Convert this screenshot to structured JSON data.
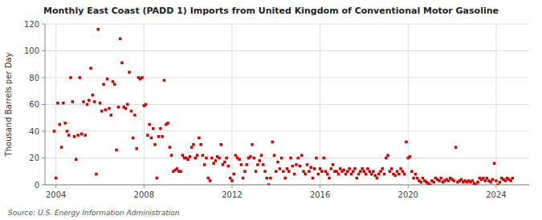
{
  "chart_data": {
    "type": "scatter",
    "title": "Monthly East Coast (PADD 1) Imports from United Kingdom of Conventional Motor Gasoline",
    "ylabel": "Thousand Barrels per Day",
    "source": "Source: U.S. Energy Information Administration",
    "color": "#cc0000",
    "marker": "square",
    "grid": true,
    "xlim": [
      2003.5,
      2025.5
    ],
    "xticks": [
      2004,
      2008,
      2012,
      2016,
      2020,
      2024
    ],
    "ylim": [
      0,
      120
    ],
    "yticks": [
      0,
      20,
      40,
      60,
      80,
      100,
      120
    ],
    "x": [
      2003.917,
      2004.0,
      2004.083,
      2004.167,
      2004.25,
      2004.333,
      2004.417,
      2004.5,
      2004.583,
      2004.667,
      2004.75,
      2004.833,
      2004.917,
      2005.0,
      2005.083,
      2005.167,
      2005.25,
      2005.333,
      2005.417,
      2005.5,
      2005.583,
      2005.667,
      2005.75,
      2005.833,
      2005.917,
      2006.0,
      2006.083,
      2006.167,
      2006.25,
      2006.333,
      2006.417,
      2006.5,
      2006.583,
      2006.667,
      2006.75,
      2006.833,
      2006.917,
      2007.0,
      2007.083,
      2007.167,
      2007.25,
      2007.333,
      2007.417,
      2007.5,
      2007.583,
      2007.667,
      2007.75,
      2007.833,
      2007.917,
      2008.0,
      2008.083,
      2008.167,
      2008.25,
      2008.333,
      2008.417,
      2008.5,
      2008.583,
      2008.667,
      2008.75,
      2008.833,
      2008.917,
      2009.0,
      2009.083,
      2009.167,
      2009.25,
      2009.333,
      2009.417,
      2009.5,
      2009.583,
      2009.667,
      2009.75,
      2009.833,
      2009.917,
      2010.0,
      2010.083,
      2010.167,
      2010.25,
      2010.333,
      2010.417,
      2010.5,
      2010.583,
      2010.667,
      2010.75,
      2010.833,
      2010.917,
      2011.0,
      2011.083,
      2011.167,
      2011.25,
      2011.333,
      2011.417,
      2011.5,
      2011.583,
      2011.667,
      2011.75,
      2011.833,
      2011.917,
      2012.0,
      2012.083,
      2012.167,
      2012.25,
      2012.333,
      2012.417,
      2012.5,
      2012.583,
      2012.667,
      2012.75,
      2012.833,
      2012.917,
      2013.0,
      2013.083,
      2013.167,
      2013.25,
      2013.333,
      2013.417,
      2013.5,
      2013.583,
      2013.667,
      2013.75,
      2013.833,
      2013.917,
      2014.0,
      2014.083,
      2014.167,
      2014.25,
      2014.333,
      2014.417,
      2014.5,
      2014.583,
      2014.667,
      2014.75,
      2014.833,
      2014.917,
      2015.0,
      2015.083,
      2015.167,
      2015.25,
      2015.333,
      2015.417,
      2015.5,
      2015.583,
      2015.667,
      2015.75,
      2015.833,
      2015.917,
      2016.0,
      2016.083,
      2016.167,
      2016.25,
      2016.333,
      2016.417,
      2016.5,
      2016.583,
      2016.667,
      2016.75,
      2016.833,
      2016.917,
      2017.0,
      2017.083,
      2017.167,
      2017.25,
      2017.333,
      2017.417,
      2017.5,
      2017.583,
      2017.667,
      2017.75,
      2017.833,
      2017.917,
      2018.0,
      2018.083,
      2018.167,
      2018.25,
      2018.333,
      2018.417,
      2018.5,
      2018.583,
      2018.667,
      2018.75,
      2018.833,
      2018.917,
      2019.0,
      2019.083,
      2019.167,
      2019.25,
      2019.333,
      2019.417,
      2019.5,
      2019.583,
      2019.667,
      2019.75,
      2019.833,
      2019.917,
      2020.0,
      2020.083,
      2020.167,
      2020.25,
      2020.333,
      2020.417,
      2020.5,
      2020.583,
      2020.667,
      2020.75,
      2020.833,
      2020.917,
      2021.0,
      2021.083,
      2021.167,
      2021.25,
      2021.333,
      2021.417,
      2021.5,
      2021.583,
      2021.667,
      2021.75,
      2021.833,
      2021.917,
      2022.0,
      2022.083,
      2022.167,
      2022.25,
      2022.333,
      2022.417,
      2022.5,
      2022.583,
      2022.667,
      2022.75,
      2022.833,
      2022.917,
      2023.0,
      2023.083,
      2023.167,
      2023.25,
      2023.333,
      2023.417,
      2023.5,
      2023.583,
      2023.667,
      2023.75,
      2023.833,
      2023.917,
      2024.0,
      2024.083,
      2024.167,
      2024.25,
      2024.333,
      2024.417,
      2024.5,
      2024.583,
      2024.667,
      2024.75
    ],
    "values": [
      40,
      5,
      61,
      45,
      28,
      61,
      46,
      40,
      37,
      80,
      62,
      36,
      19,
      37,
      80,
      38,
      62,
      37,
      60,
      63,
      87,
      67,
      62,
      8,
      116,
      61,
      55,
      75,
      56,
      79,
      57,
      52,
      77,
      75,
      26,
      58,
      109,
      91,
      58,
      57,
      60,
      84,
      55,
      35,
      52,
      27,
      80,
      79,
      80,
      59,
      60,
      37,
      45,
      35,
      42,
      30,
      5,
      36,
      42,
      36,
      78,
      45,
      46,
      28,
      22,
      10,
      11,
      12,
      10,
      10,
      22,
      20,
      20,
      19,
      21,
      28,
      30,
      20,
      22,
      35,
      30,
      22,
      15,
      20,
      5,
      3,
      20,
      16,
      18,
      21,
      20,
      30,
      15,
      17,
      20,
      14,
      5,
      3,
      8,
      22,
      20,
      19,
      15,
      5,
      10,
      15,
      20,
      21,
      30,
      20,
      10,
      15,
      18,
      22,
      15,
      10,
      5,
      0,
      5,
      32,
      22,
      10,
      17,
      12,
      20,
      10,
      5,
      12,
      10,
      20,
      14,
      8,
      15,
      20,
      14,
      22,
      10,
      8,
      15,
      10,
      13,
      5,
      12,
      20,
      8,
      12,
      10,
      20,
      10,
      8,
      5,
      12,
      15,
      10,
      10,
      8,
      12,
      10,
      11,
      8,
      10,
      12,
      8,
      10,
      12,
      5,
      8,
      10,
      12,
      10,
      8,
      12,
      10,
      8,
      10,
      7,
      5,
      8,
      10,
      12,
      8,
      20,
      22,
      10,
      12,
      8,
      7,
      10,
      8,
      12,
      10,
      8,
      32,
      20,
      21,
      10,
      5,
      8,
      5,
      3,
      2,
      5,
      3,
      2,
      1,
      0,
      3,
      2,
      5,
      4,
      3,
      5,
      2,
      3,
      4,
      3,
      5,
      4,
      3,
      28,
      2,
      3,
      4,
      2,
      3,
      2,
      3,
      2,
      3,
      1,
      0,
      2,
      5,
      4,
      5,
      3,
      5,
      3,
      2,
      4,
      16,
      3,
      0,
      2,
      5,
      4,
      3,
      5,
      4,
      3,
      5
    ]
  }
}
